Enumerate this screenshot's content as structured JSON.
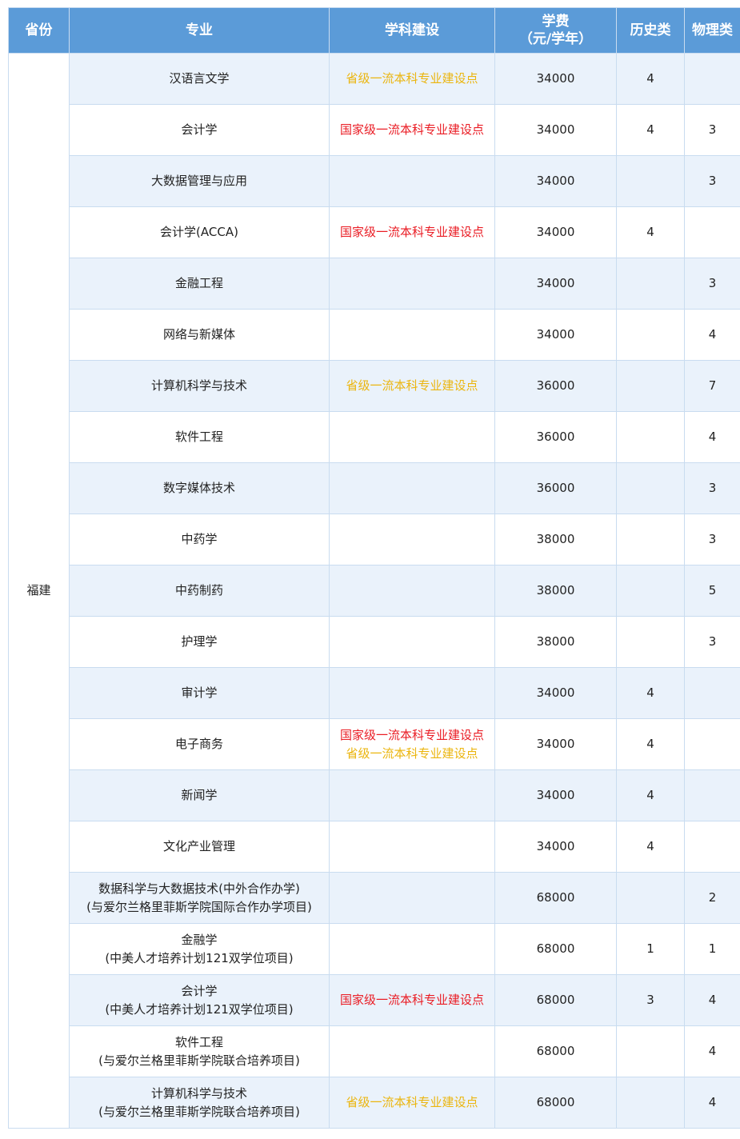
{
  "table": {
    "header": [
      [
        "省份"
      ],
      [
        "专业"
      ],
      [
        "学科建设"
      ],
      [
        "学费",
        "（元/学年）"
      ],
      [
        "历史类"
      ],
      [
        "物理类"
      ]
    ],
    "province": "福建",
    "rows": [
      {
        "major": [
          "汉语言文学"
        ],
        "construction": [
          {
            "text": "省级一流本科专业建设点",
            "color": "#ebb50e"
          }
        ],
        "fee": 34000,
        "history": 4,
        "physics": null
      },
      {
        "major": [
          "会计学"
        ],
        "construction": [
          {
            "text": "国家级一流本科专业建设点",
            "color": "#ea1c24"
          }
        ],
        "fee": 34000,
        "history": 4,
        "physics": 3
      },
      {
        "major": [
          "大数据管理与应用"
        ],
        "construction": [],
        "fee": 34000,
        "history": null,
        "physics": 3
      },
      {
        "major": [
          "会计学(ACCA)"
        ],
        "construction": [
          {
            "text": "国家级一流本科专业建设点",
            "color": "#ea1c24"
          }
        ],
        "fee": 34000,
        "history": 4,
        "physics": null
      },
      {
        "major": [
          "金融工程"
        ],
        "construction": [],
        "fee": 34000,
        "history": null,
        "physics": 3
      },
      {
        "major": [
          "网络与新媒体"
        ],
        "construction": [],
        "fee": 34000,
        "history": null,
        "physics": 4
      },
      {
        "major": [
          "计算机科学与技术"
        ],
        "construction": [
          {
            "text": "省级一流本科专业建设点",
            "color": "#ebb50e"
          }
        ],
        "fee": 36000,
        "history": null,
        "physics": 7
      },
      {
        "major": [
          "软件工程"
        ],
        "construction": [],
        "fee": 36000,
        "history": null,
        "physics": 4
      },
      {
        "major": [
          "数字媒体技术"
        ],
        "construction": [],
        "fee": 36000,
        "history": null,
        "physics": 3
      },
      {
        "major": [
          "中药学"
        ],
        "construction": [],
        "fee": 38000,
        "history": null,
        "physics": 3
      },
      {
        "major": [
          "中药制药"
        ],
        "construction": [],
        "fee": 38000,
        "history": null,
        "physics": 5
      },
      {
        "major": [
          "护理学"
        ],
        "construction": [],
        "fee": 38000,
        "history": null,
        "physics": 3
      },
      {
        "major": [
          "审计学"
        ],
        "construction": [],
        "fee": 34000,
        "history": 4,
        "physics": null
      },
      {
        "major": [
          "电子商务"
        ],
        "construction": [
          {
            "text": "国家级一流本科专业建设点",
            "color": "#ea1c24"
          },
          {
            "text": "省级一流本科专业建设点",
            "color": "#ebb50e"
          }
        ],
        "fee": 34000,
        "history": 4,
        "physics": null
      },
      {
        "major": [
          "新闻学"
        ],
        "construction": [],
        "fee": 34000,
        "history": 4,
        "physics": null
      },
      {
        "major": [
          "文化产业管理"
        ],
        "construction": [],
        "fee": 34000,
        "history": 4,
        "physics": null
      },
      {
        "major": [
          "数据科学与大数据技术(中外合作办学)",
          "(与爱尔兰格里菲斯学院国际合作办学项目)"
        ],
        "construction": [],
        "fee": 68000,
        "history": null,
        "physics": 2
      },
      {
        "major": [
          "金融学",
          "(中美人才培养计划121双学位项目)"
        ],
        "construction": [],
        "fee": 68000,
        "history": 1,
        "physics": 1
      },
      {
        "major": [
          "会计学",
          "(中美人才培养计划121双学位项目)"
        ],
        "construction": [
          {
            "text": "国家级一流本科专业建设点",
            "color": "#ea1c24"
          }
        ],
        "fee": 68000,
        "history": 3,
        "physics": 4
      },
      {
        "major": [
          "软件工程",
          "(与爱尔兰格里菲斯学院联合培养项目)"
        ],
        "construction": [],
        "fee": 68000,
        "history": null,
        "physics": 4
      },
      {
        "major": [
          "计算机科学与技术",
          "(与爱尔兰格里菲斯学院联合培养项目)"
        ],
        "construction": [
          {
            "text": "省级一流本科专业建设点",
            "color": "#ebb50e"
          }
        ],
        "fee": 68000,
        "history": null,
        "physics": 4
      }
    ]
  }
}
